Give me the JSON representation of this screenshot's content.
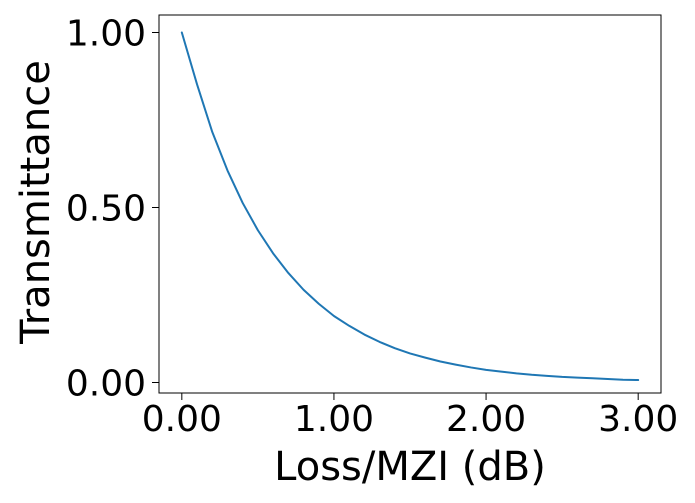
{
  "chart_data": {
    "type": "line",
    "title": "",
    "xlabel": "Loss/MZI (dB)",
    "ylabel": "Transmittance",
    "xlim": [
      -0.15,
      3.15
    ],
    "ylim": [
      -0.03,
      1.05
    ],
    "xticks": [
      {
        "value": 0,
        "label": "0.00"
      },
      {
        "value": 1,
        "label": "1.00"
      },
      {
        "value": 2,
        "label": "2.00"
      },
      {
        "value": 3,
        "label": "3.00"
      }
    ],
    "yticks": [
      {
        "value": 0,
        "label": "0.00"
      },
      {
        "value": 0.5,
        "label": "0.50"
      },
      {
        "value": 1,
        "label": "1.00"
      }
    ],
    "grid": false,
    "series": [
      {
        "color": "#1f77b4",
        "x": [
          0.0,
          0.1,
          0.2,
          0.3,
          0.4,
          0.5,
          0.6,
          0.7,
          0.8,
          0.9,
          1.0,
          1.1,
          1.2,
          1.3,
          1.4,
          1.5,
          1.6,
          1.7,
          1.8,
          1.9,
          2.0,
          2.1,
          2.2,
          2.3,
          2.4,
          2.5,
          2.6,
          2.7,
          2.8,
          2.9,
          3.0
        ],
        "y": [
          1.0,
          0.852,
          0.716,
          0.606,
          0.513,
          0.435,
          0.369,
          0.313,
          0.265,
          0.225,
          0.19,
          0.162,
          0.137,
          0.116,
          0.098,
          0.083,
          0.071,
          0.06,
          0.051,
          0.043,
          0.036,
          0.031,
          0.026,
          0.022,
          0.019,
          0.016,
          0.014,
          0.012,
          0.01,
          0.008,
          0.007
        ]
      }
    ]
  }
}
